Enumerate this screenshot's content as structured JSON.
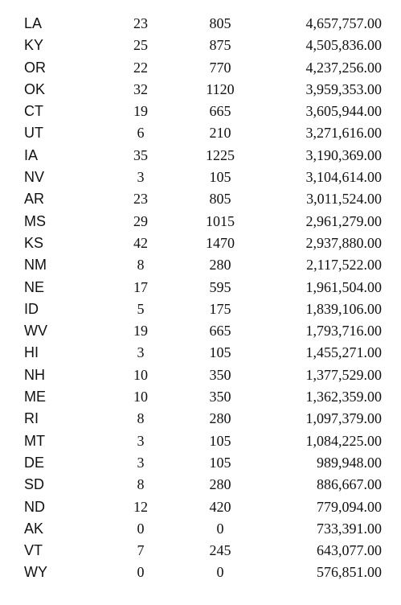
{
  "rows": [
    {
      "state": "LA",
      "col1": "23",
      "col2": "805",
      "amount": "4,657,757.00"
    },
    {
      "state": "KY",
      "col1": "25",
      "col2": "875",
      "amount": "4,505,836.00"
    },
    {
      "state": "OR",
      "col1": "22",
      "col2": "770",
      "amount": "4,237,256.00"
    },
    {
      "state": "OK",
      "col1": "32",
      "col2": "1120",
      "amount": "3,959,353.00"
    },
    {
      "state": "CT",
      "col1": "19",
      "col2": "665",
      "amount": "3,605,944.00"
    },
    {
      "state": "UT",
      "col1": "6",
      "col2": "210",
      "amount": "3,271,616.00"
    },
    {
      "state": "IA",
      "col1": "35",
      "col2": "1225",
      "amount": "3,190,369.00"
    },
    {
      "state": "NV",
      "col1": "3",
      "col2": "105",
      "amount": "3,104,614.00"
    },
    {
      "state": "AR",
      "col1": "23",
      "col2": "805",
      "amount": "3,011,524.00"
    },
    {
      "state": "MS",
      "col1": "29",
      "col2": "1015",
      "amount": "2,961,279.00"
    },
    {
      "state": "KS",
      "col1": "42",
      "col2": "1470",
      "amount": "2,937,880.00"
    },
    {
      "state": "NM",
      "col1": "8",
      "col2": "280",
      "amount": "2,117,522.00"
    },
    {
      "state": "NE",
      "col1": "17",
      "col2": "595",
      "amount": "1,961,504.00"
    },
    {
      "state": "ID",
      "col1": "5",
      "col2": "175",
      "amount": "1,839,106.00"
    },
    {
      "state": "WV",
      "col1": "19",
      "col2": "665",
      "amount": "1,793,716.00"
    },
    {
      "state": "HI",
      "col1": "3",
      "col2": "105",
      "amount": "1,455,271.00"
    },
    {
      "state": "NH",
      "col1": "10",
      "col2": "350",
      "amount": "1,377,529.00"
    },
    {
      "state": "ME",
      "col1": "10",
      "col2": "350",
      "amount": "1,362,359.00"
    },
    {
      "state": "RI",
      "col1": "8",
      "col2": "280",
      "amount": "1,097,379.00"
    },
    {
      "state": "MT",
      "col1": "3",
      "col2": "105",
      "amount": "1,084,225.00"
    },
    {
      "state": "DE",
      "col1": "3",
      "col2": "105",
      "amount": "989,948.00"
    },
    {
      "state": "SD",
      "col1": "8",
      "col2": "280",
      "amount": "886,667.00"
    },
    {
      "state": "ND",
      "col1": "12",
      "col2": "420",
      "amount": "779,094.00"
    },
    {
      "state": "AK",
      "col1": "0",
      "col2": "0",
      "amount": "733,391.00"
    },
    {
      "state": "VT",
      "col1": "7",
      "col2": "245",
      "amount": "643,077.00"
    },
    {
      "state": "WY",
      "col1": "0",
      "col2": "0",
      "amount": "576,851.00"
    }
  ]
}
